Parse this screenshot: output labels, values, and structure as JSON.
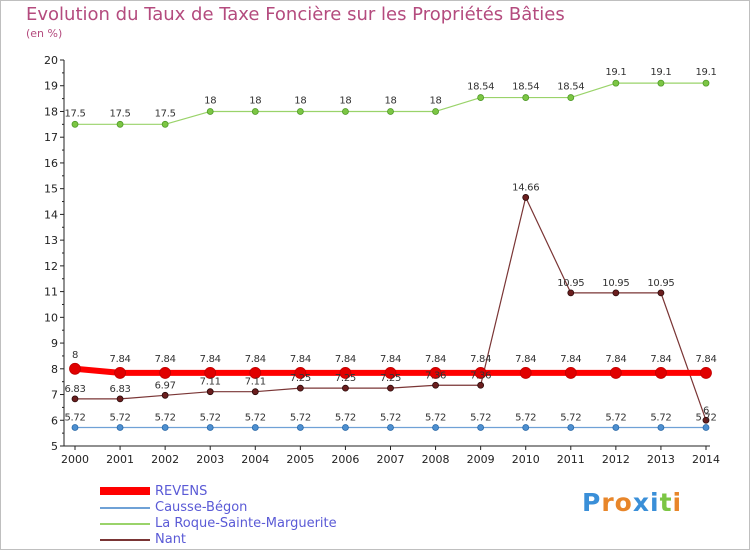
{
  "chart_data": {
    "type": "line",
    "title": "Evolution du Taux de Taxe Foncière sur les Propriétés Bâties",
    "ylabel": "(en %)",
    "xlabel": "",
    "ylim": [
      5,
      20
    ],
    "yticks": [
      5,
      6,
      7,
      8,
      9,
      10,
      11,
      12,
      13,
      14,
      15,
      16,
      17,
      18,
      19,
      20
    ],
    "categories": [
      "2000",
      "2001",
      "2002",
      "2003",
      "2004",
      "2005",
      "2006",
      "2007",
      "2008",
      "2009",
      "2010",
      "2011",
      "2012",
      "2013",
      "2014"
    ],
    "grid": false,
    "legend_position": "bottom-left",
    "series": [
      {
        "name": "REVENS",
        "color": "#ff0000",
        "values": [
          8,
          7.84,
          7.84,
          7.84,
          7.84,
          7.84,
          7.84,
          7.84,
          7.84,
          7.84,
          7.84,
          7.84,
          7.84,
          7.84,
          7.84
        ],
        "labels": [
          "8",
          "7.84",
          "7.84",
          "7.84",
          "7.84",
          "7.84",
          "7.84",
          "7.84",
          "7.84",
          "7.84",
          "7.84",
          "7.84",
          "7.84",
          "7.84",
          "7.84"
        ]
      },
      {
        "name": "Causse-Bégon",
        "color": "#6fa1d6",
        "values": [
          5.72,
          5.72,
          5.72,
          5.72,
          5.72,
          5.72,
          5.72,
          5.72,
          5.72,
          5.72,
          5.72,
          5.72,
          5.72,
          5.72,
          5.72
        ],
        "labels": [
          "5.72",
          "5.72",
          "5.72",
          "5.72",
          "5.72",
          "5.72",
          "5.72",
          "5.72",
          "5.72",
          "5.72",
          "5.72",
          "5.72",
          "5.72",
          "5.72",
          "5.72"
        ]
      },
      {
        "name": "La Roque-Sainte-Marguerite",
        "color": "#9ad36a",
        "values": [
          17.5,
          17.5,
          17.5,
          18,
          18,
          18,
          18,
          18,
          18,
          18.54,
          18.54,
          18.54,
          19.1,
          19.1,
          19.1
        ],
        "labels": [
          "17.5",
          "17.5",
          "17.5",
          "18",
          "18",
          "18",
          "18",
          "18",
          "18",
          "18.54",
          "18.54",
          "18.54",
          "19.1",
          "19.1",
          "19.1"
        ]
      },
      {
        "name": "Nant",
        "color": "#7a3535",
        "values": [
          6.83,
          6.83,
          6.97,
          7.11,
          7.11,
          7.25,
          7.25,
          7.25,
          7.36,
          7.36,
          14.66,
          10.95,
          10.95,
          10.95,
          6
        ],
        "labels": [
          "6.83",
          "6.83",
          "6.97",
          "7.11",
          "7.11",
          "7.25",
          "7.25",
          "7.25",
          "7.36",
          "7.36",
          "14.66",
          "10.95",
          "10.95",
          "10.95",
          "6"
        ]
      }
    ],
    "legend": [
      "REVENS",
      "Causse-Bégon",
      "La Roque-Sainte-Marguerite",
      "Nant"
    ]
  },
  "logo": {
    "text": "Proxiti"
  }
}
